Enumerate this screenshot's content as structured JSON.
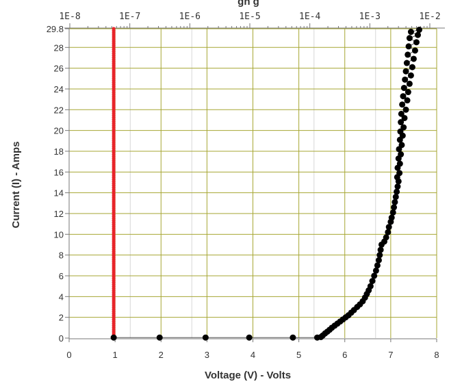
{
  "chart_data": {
    "type": "scatter",
    "xlabel": "Voltage (V) - Volts",
    "ylabel": "Current (I) - Amps",
    "xlim": [
      0,
      8
    ],
    "ylim": [
      0,
      29.8
    ],
    "x_ticks": [
      0,
      1,
      2,
      3,
      4,
      5,
      6,
      7,
      8
    ],
    "x_tick_labels": [
      "0",
      "1",
      "2",
      "3",
      "4",
      "5",
      "6",
      "7",
      "8"
    ],
    "y_ticks": [
      0,
      2,
      4,
      6,
      8,
      10,
      12,
      14,
      16,
      18,
      20,
      22,
      24,
      26,
      28,
      29.8
    ],
    "y_tick_labels": [
      "0",
      "2",
      "4",
      "6",
      "8",
      "10",
      "12",
      "14",
      "16",
      "18",
      "20",
      "22",
      "24",
      "26",
      "28",
      "29.8"
    ],
    "top_axis": {
      "scale": "log",
      "ticks": [
        1e-08,
        1e-07,
        1e-06,
        1e-05,
        0.0001,
        0.001,
        0.01
      ],
      "tick_labels": [
        "1E-8",
        "1E-7",
        "1E-6",
        "1E-5",
        "1E-4",
        "1E-3",
        "1E-2"
      ],
      "title_partial": "gh g"
    },
    "grid": true,
    "grid_color": "#a6a632",
    "colors": {
      "red_series": "#e8252a",
      "black_series": "#000000",
      "grid": "#a6a632",
      "axis": "#777777"
    },
    "series": [
      {
        "color": "#e8252a",
        "style": "vertical-line-markers",
        "x": [
          0.97,
          0.97
        ],
        "y": [
          0,
          29.8
        ]
      },
      {
        "color": "#000000",
        "style": "line+markers",
        "points": [
          [
            0.97,
            0.05
          ],
          [
            1.97,
            0.05
          ],
          [
            2.97,
            0.05
          ],
          [
            3.92,
            0.05
          ],
          [
            4.87,
            0.05
          ],
          [
            5.4,
            0.05
          ],
          [
            5.48,
            0.1
          ],
          [
            5.52,
            0.25
          ],
          [
            5.57,
            0.45
          ],
          [
            5.62,
            0.62
          ],
          [
            5.67,
            0.8
          ],
          [
            5.72,
            1.0
          ],
          [
            5.78,
            1.2
          ],
          [
            5.84,
            1.4
          ],
          [
            5.9,
            1.6
          ],
          [
            5.96,
            1.8
          ],
          [
            6.02,
            2.0
          ],
          [
            6.08,
            2.2
          ],
          [
            6.14,
            2.45
          ],
          [
            6.2,
            2.7
          ],
          [
            6.27,
            3.0
          ],
          [
            6.33,
            3.25
          ],
          [
            6.39,
            3.55
          ],
          [
            6.44,
            3.9
          ],
          [
            6.48,
            4.25
          ],
          [
            6.52,
            4.6
          ],
          [
            6.56,
            5.0
          ],
          [
            6.6,
            5.5
          ],
          [
            6.64,
            6.0
          ],
          [
            6.68,
            6.5
          ],
          [
            6.71,
            7.0
          ],
          [
            6.74,
            7.5
          ],
          [
            6.76,
            8.0
          ],
          [
            6.78,
            8.5
          ],
          [
            6.8,
            9.0
          ],
          [
            6.86,
            9.3
          ],
          [
            6.9,
            9.7
          ],
          [
            6.94,
            10.2
          ],
          [
            6.96,
            10.7
          ],
          [
            7.0,
            11.2
          ],
          [
            7.02,
            11.6
          ],
          [
            7.05,
            12.1
          ],
          [
            7.07,
            12.6
          ],
          [
            7.09,
            13.1
          ],
          [
            7.11,
            13.6
          ],
          [
            7.13,
            14.1
          ],
          [
            7.15,
            14.6
          ],
          [
            7.17,
            15.1
          ],
          [
            7.14,
            15.5
          ],
          [
            7.19,
            15.9
          ],
          [
            7.15,
            16.4
          ],
          [
            7.2,
            16.8
          ],
          [
            7.17,
            17.3
          ],
          [
            7.22,
            17.7
          ],
          [
            7.18,
            18.2
          ],
          [
            7.24,
            18.6
          ],
          [
            7.2,
            19.1
          ],
          [
            7.26,
            19.5
          ],
          [
            7.21,
            19.9
          ],
          [
            7.28,
            20.3
          ],
          [
            7.22,
            20.8
          ],
          [
            7.3,
            21.2
          ],
          [
            7.23,
            21.6
          ],
          [
            7.33,
            22.0
          ],
          [
            7.25,
            22.5
          ],
          [
            7.36,
            22.9
          ],
          [
            7.27,
            23.3
          ],
          [
            7.38,
            23.7
          ],
          [
            7.29,
            24.1
          ],
          [
            7.41,
            24.5
          ],
          [
            7.31,
            24.9
          ],
          [
            7.44,
            25.3
          ],
          [
            7.33,
            25.7
          ],
          [
            7.47,
            26.1
          ],
          [
            7.35,
            26.5
          ],
          [
            7.5,
            26.9
          ],
          [
            7.37,
            27.3
          ],
          [
            7.53,
            27.7
          ],
          [
            7.39,
            28.1
          ],
          [
            7.56,
            28.5
          ],
          [
            7.41,
            28.9
          ],
          [
            7.59,
            29.2
          ],
          [
            7.44,
            29.5
          ],
          [
            7.62,
            29.7
          ]
        ]
      }
    ]
  }
}
